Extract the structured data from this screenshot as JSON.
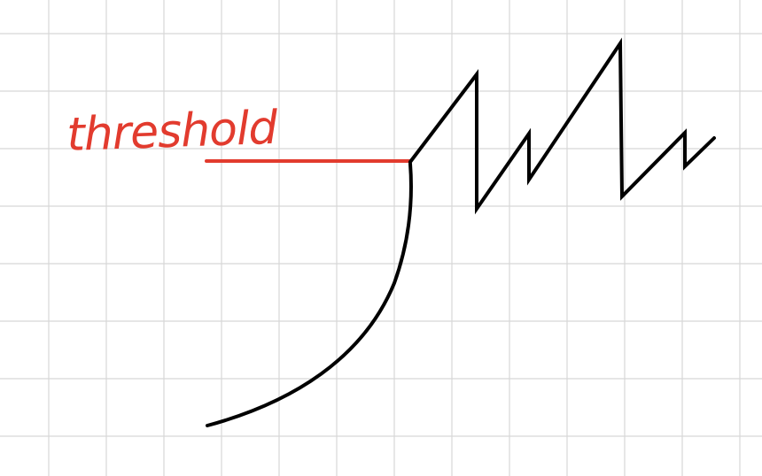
{
  "label": {
    "text": "threshold",
    "color": "#e23b2e"
  },
  "colors": {
    "threshold_line": "#e23b2e",
    "signal_curve": "#000000",
    "grid": "#d7d7d7",
    "background": "#ffffff"
  }
}
